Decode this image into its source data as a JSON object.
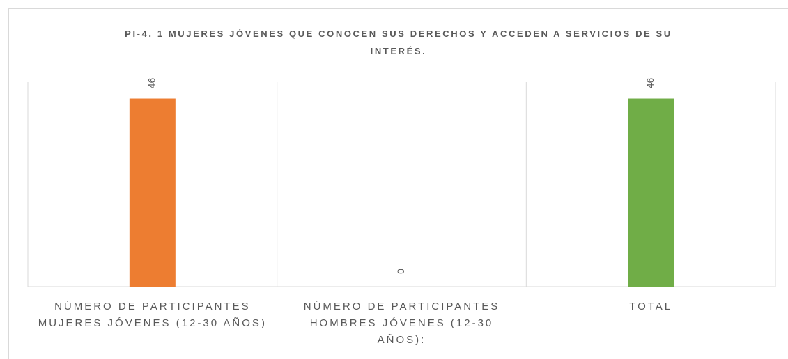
{
  "chart_data": {
    "type": "bar",
    "title": "PI-4. 1 MUJERES JÓVENES QUE CONOCEN SUS DERECHOS Y ACCEDEN A SERVICIOS DE SU INTERÉS.",
    "categories": [
      "NÚMERO DE PARTICIPANTES MUJERES JÓVENES (12-30 AÑOS)",
      "NÚMERO DE PARTICIPANTES HOMBRES JÓVENES (12-30 AÑOS):",
      "TOTAL"
    ],
    "values": [
      46,
      0,
      46
    ],
    "colors": [
      "#ED7D31",
      "#A5A5A5",
      "#70AD47"
    ],
    "ylim": [
      0,
      50
    ],
    "grid": true
  }
}
